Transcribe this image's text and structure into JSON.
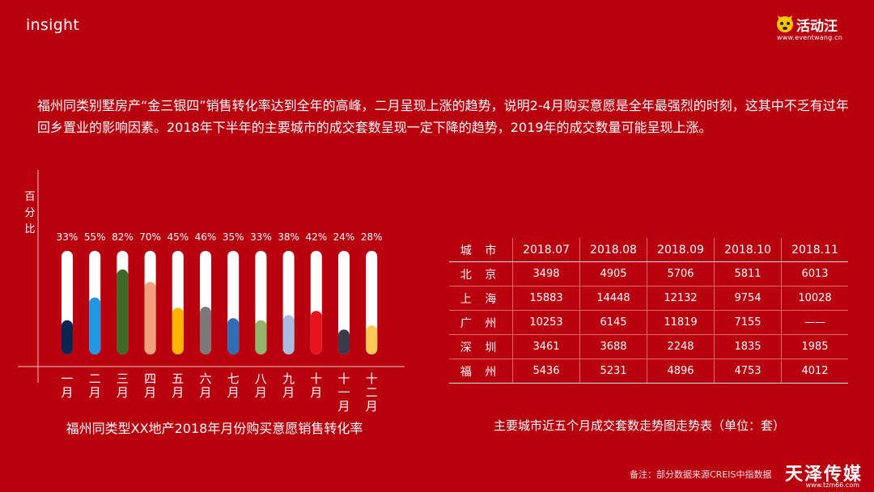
{
  "slide": {
    "label": "insight"
  },
  "logo": {
    "name": "活动汪",
    "url": "www.eventwang.cn"
  },
  "summary": "福州同类别墅房产“金三银四”销售转化率达到全年的高峰，二月呈现上涨的趋势，说明2-4月购买意愿是全年最强烈的时刻，这其中不乏有过年回乡置业的影响因素。2018年下半年的主要城市的成交套数呈现一定下降的趋势，2019年的成交数量可能呈现上涨。",
  "chart_data": {
    "type": "bar",
    "ylabel": "百分比",
    "categories": [
      "一月",
      "二月",
      "三月",
      "四月",
      "五月",
      "六月",
      "七月",
      "八月",
      "九月",
      "十月",
      "十一月",
      "十二月"
    ],
    "values": [
      33,
      55,
      82,
      70,
      45,
      46,
      35,
      33,
      38,
      42,
      24,
      28
    ],
    "value_labels": [
      "33%",
      "55%",
      "82%",
      "70%",
      "45%",
      "46%",
      "35%",
      "33%",
      "38%",
      "42%",
      "24%",
      "28%"
    ],
    "ylim": [
      0,
      100
    ],
    "grid": false,
    "legend": "none",
    "colors": [
      "#0d2351",
      "#1e98e0",
      "#3d6b27",
      "#f0a07a",
      "#ffb400",
      "#7a7a7a",
      "#2e6db3",
      "#93b46a",
      "#a8bde0",
      "#e8141c",
      "#3a3a48",
      "#ffc857"
    ],
    "track_color": "#ffffff",
    "caption": "福州同类型XX地产2018年月份购买意愿销售转化率"
  },
  "table": {
    "headers": [
      "城 市",
      "2018.07",
      "2018.08",
      "2018.09",
      "2018.10",
      "2018.11"
    ],
    "rows": [
      [
        "北 京",
        "3498",
        "4905",
        "5706",
        "5811",
        "6013"
      ],
      [
        "上 海",
        "15883",
        "14448",
        "12132",
        "9754",
        "10028"
      ],
      [
        "广 州",
        "10253",
        "6145",
        "11819",
        "7155",
        "——"
      ],
      [
        "深 圳",
        "3461",
        "3688",
        "2248",
        "1835",
        "1985"
      ],
      [
        "福 州",
        "5436",
        "5231",
        "4896",
        "4753",
        "4012"
      ]
    ],
    "caption": "主要城市近五个月成交套数走势图走势表（单位：套）"
  },
  "footnote": "备注：部分数据来源CREIS中指数据",
  "watermark": {
    "name": "天泽传媒",
    "url": "www.tzm66.com"
  },
  "colors": {
    "background": "#b8000e",
    "text": "#ffffff"
  }
}
